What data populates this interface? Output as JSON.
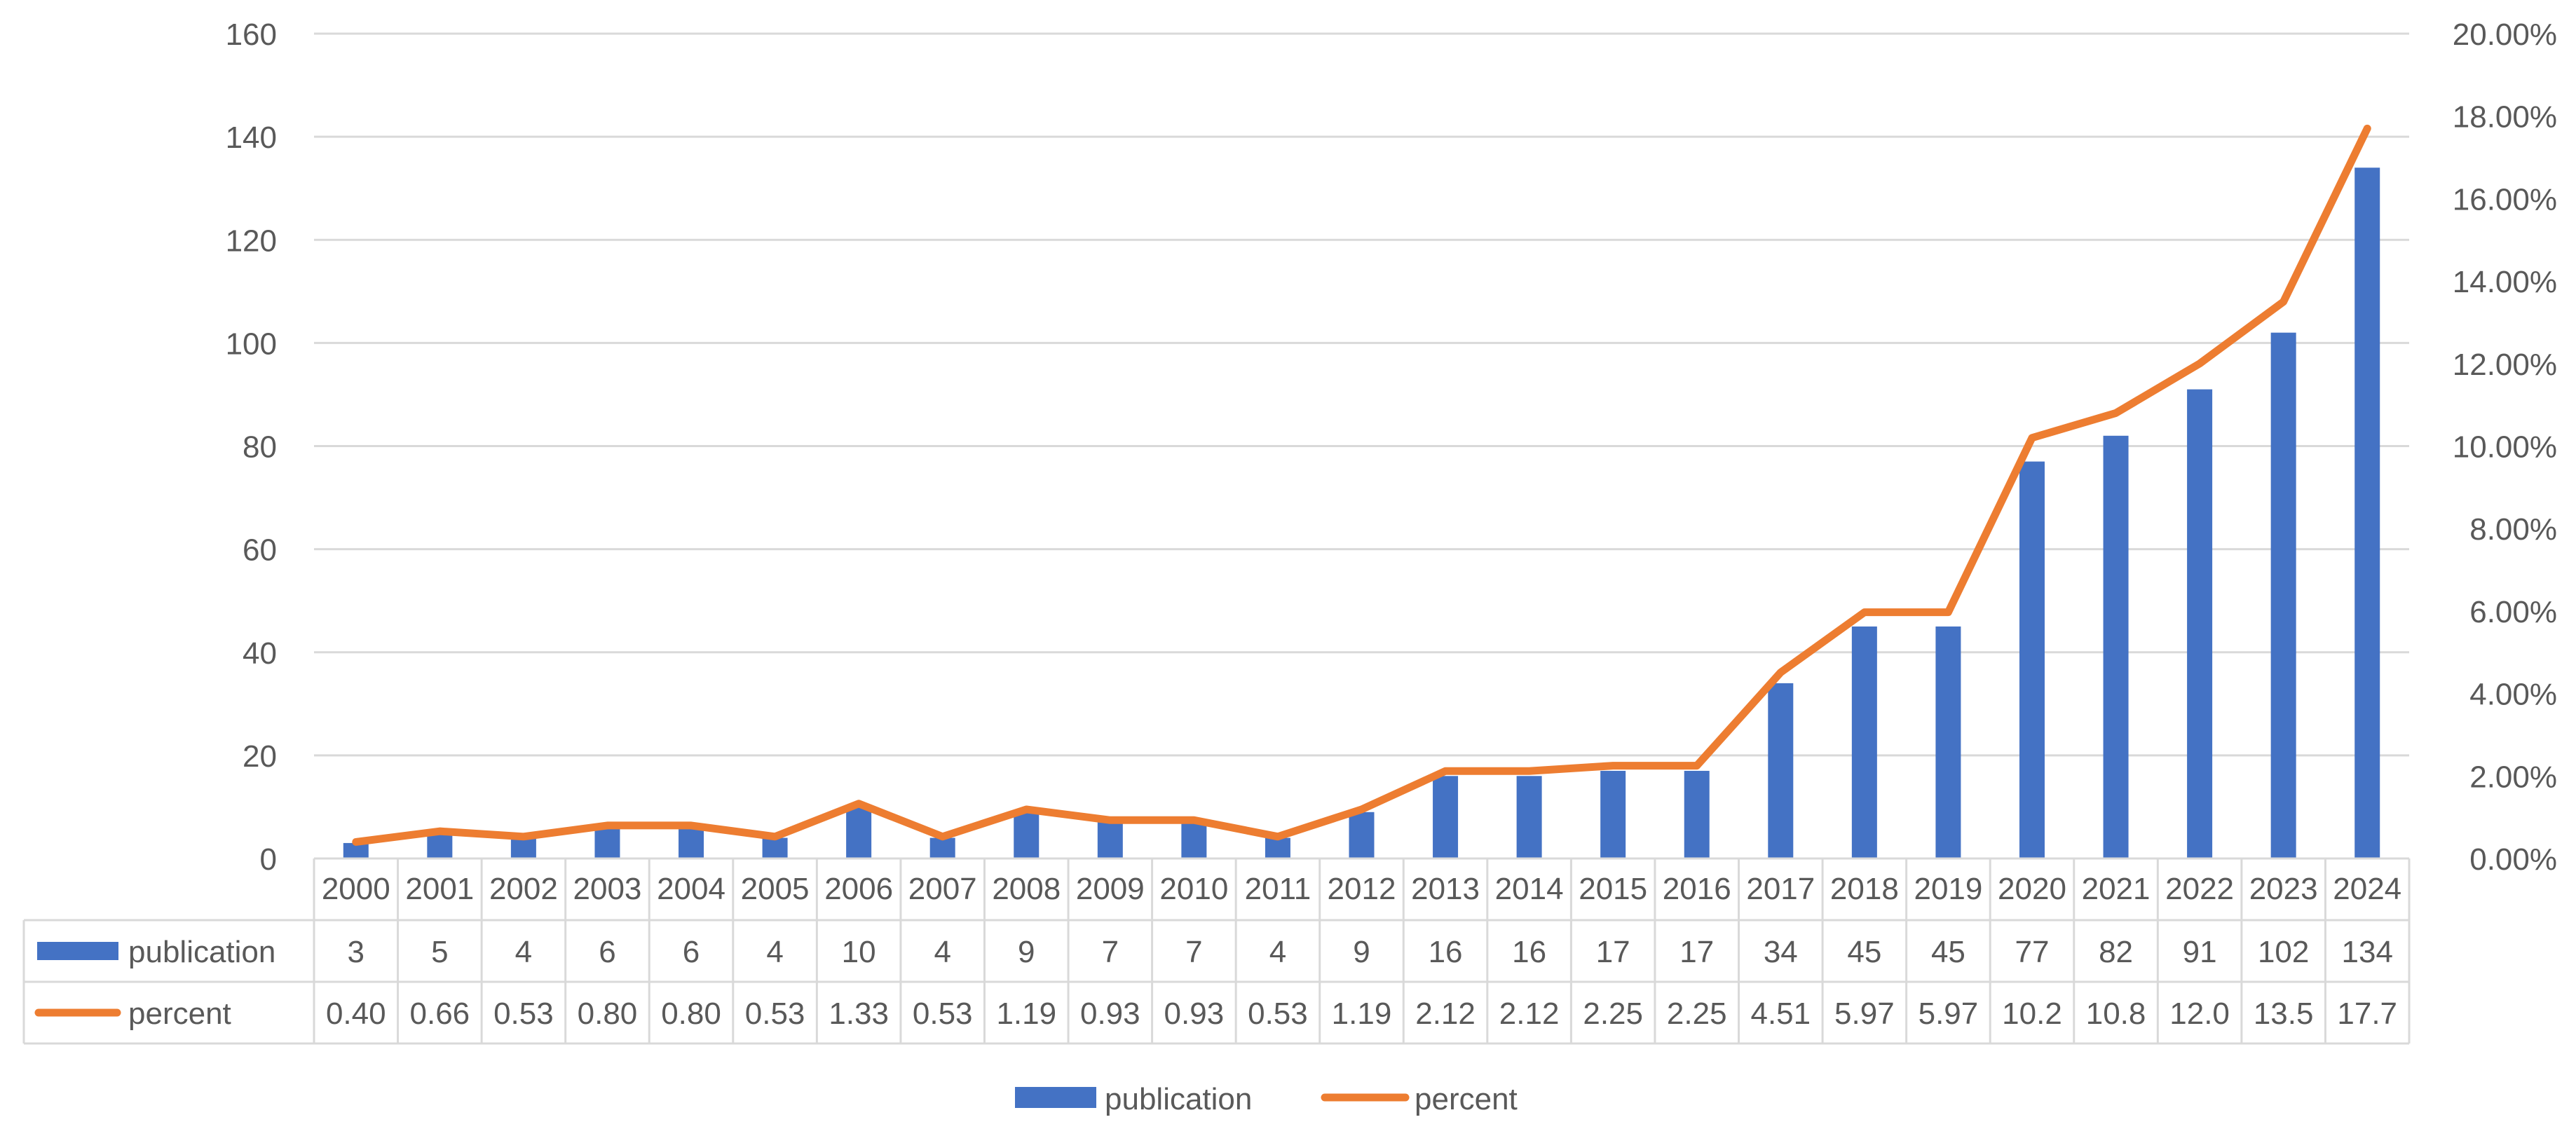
{
  "chart_data": {
    "type": "bar",
    "categories": [
      "2000",
      "2001",
      "2002",
      "2003",
      "2004",
      "2005",
      "2006",
      "2007",
      "2008",
      "2009",
      "2010",
      "2011",
      "2012",
      "2013",
      "2014",
      "2015",
      "2016",
      "2017",
      "2018",
      "2019",
      "2020",
      "2021",
      "2022",
      "2023",
      "2024"
    ],
    "series": [
      {
        "name": "publication",
        "type": "bar",
        "axis": "left",
        "color": "#4472C4",
        "values": [
          3,
          5,
          4,
          6,
          6,
          4,
          10,
          4,
          9,
          7,
          7,
          4,
          9,
          16,
          16,
          17,
          17,
          34,
          45,
          45,
          77,
          82,
          91,
          102,
          134
        ]
      },
      {
        "name": "percent",
        "type": "line",
        "axis": "right",
        "color": "#ED7D31",
        "values": [
          0.4,
          0.66,
          0.53,
          0.8,
          0.8,
          0.53,
          1.33,
          0.53,
          1.19,
          0.93,
          0.93,
          0.53,
          1.19,
          2.12,
          2.12,
          2.25,
          2.25,
          4.51,
          5.97,
          5.97,
          10.2,
          10.8,
          12.0,
          13.5,
          17.7
        ],
        "table_labels": [
          "0.40",
          "0.66",
          "0.53",
          "0.80",
          "0.80",
          "0.53",
          "1.33",
          "0.53",
          "1.19",
          "0.93",
          "0.93",
          "0.53",
          "1.19",
          "2.12",
          "2.12",
          "2.25",
          "2.25",
          "4.51",
          "5.97",
          "5.97",
          "10.2",
          "10.8",
          "12.0",
          "13.5",
          "17.7"
        ]
      }
    ],
    "ylim": [
      0,
      160
    ],
    "yticks": [
      "0",
      "20",
      "40",
      "60",
      "80",
      "100",
      "120",
      "140",
      "160"
    ],
    "y2lim": [
      0,
      20
    ],
    "y2ticks": [
      "0.00%",
      "2.00%",
      "4.00%",
      "6.00%",
      "8.00%",
      "10.00%",
      "12.00%",
      "14.00%",
      "16.00%",
      "18.00%",
      "20.00%"
    ],
    "title": "",
    "xlabel": "",
    "ylabel": "",
    "grid": true,
    "data_table": true,
    "legend_position": "bottom",
    "legend": [
      "publication",
      "percent"
    ],
    "colors": {
      "grid": "#D9D9D9",
      "text": "#595959",
      "table_border": "#D9D9D9"
    }
  }
}
